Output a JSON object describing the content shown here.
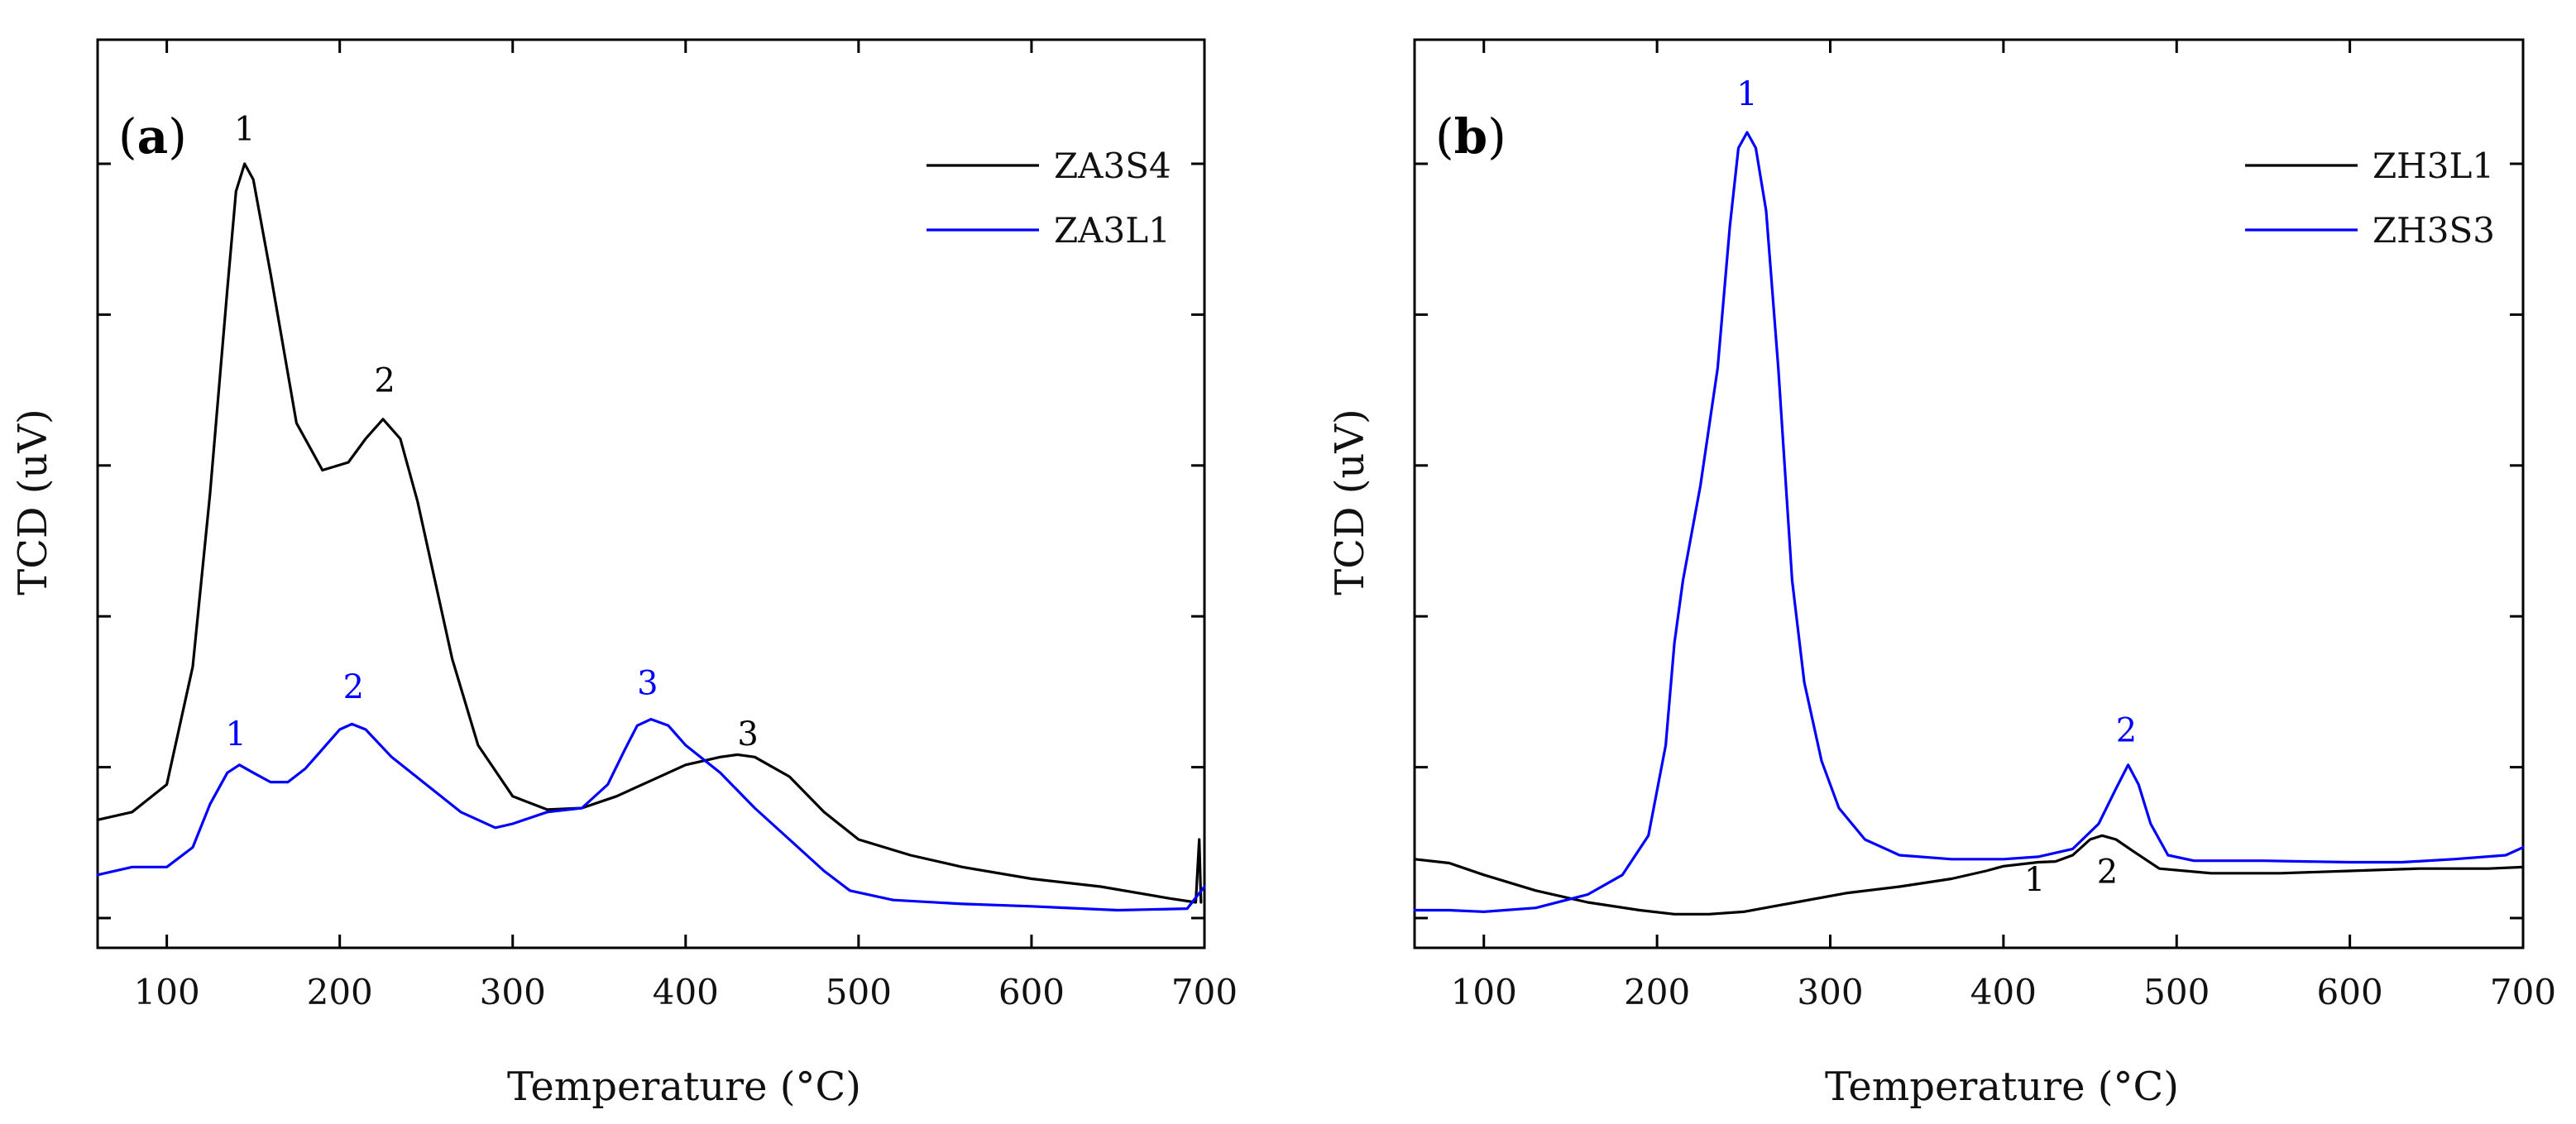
{
  "chart_data": [
    {
      "type": "line",
      "panel_label": "a",
      "xlabel": "Temperature (°C)",
      "ylabel": "TCD (uV)",
      "xlim": [
        60,
        700
      ],
      "ylim": [
        0,
        100
      ],
      "x_ticks": [
        100,
        200,
        300,
        400,
        500,
        600,
        700
      ],
      "y_ticks": [
        0,
        19.2,
        38.4,
        57.6,
        76.8,
        96
      ],
      "yticklabels_visible": false,
      "legend_position": "top-right",
      "series": [
        {
          "name": "ZA3S4",
          "color": "#000000",
          "points": [
            [
              60,
              12.5
            ],
            [
              80,
              13.5
            ],
            [
              100,
              17
            ],
            [
              115,
              32
            ],
            [
              125,
              54
            ],
            [
              135,
              80
            ],
            [
              140,
              92.5
            ],
            [
              145,
              96
            ],
            [
              150,
              94
            ],
            [
              160,
              82
            ],
            [
              175,
              63
            ],
            [
              190,
              57
            ],
            [
              205,
              58
            ],
            [
              215,
              61
            ],
            [
              225,
              63.5
            ],
            [
              235,
              61
            ],
            [
              245,
              53
            ],
            [
              255,
              43
            ],
            [
              265,
              33
            ],
            [
              280,
              22
            ],
            [
              300,
              15.5
            ],
            [
              320,
              13.8
            ],
            [
              340,
              14
            ],
            [
              360,
              15.5
            ],
            [
              380,
              17.5
            ],
            [
              400,
              19.5
            ],
            [
              420,
              20.5
            ],
            [
              430,
              20.8
            ],
            [
              440,
              20.5
            ],
            [
              460,
              18
            ],
            [
              480,
              13.5
            ],
            [
              500,
              10
            ],
            [
              530,
              8
            ],
            [
              560,
              6.5
            ],
            [
              600,
              5
            ],
            [
              640,
              4
            ],
            [
              680,
              2.5
            ],
            [
              695,
              2
            ],
            [
              697,
              10
            ],
            [
              698,
              2
            ]
          ],
          "peaks": [
            {
              "label": "1",
              "x": 145,
              "y": 99
            },
            {
              "label": "2",
              "x": 226,
              "y": 67
            },
            {
              "label": "3",
              "x": 436,
              "y": 22
            }
          ]
        },
        {
          "name": "ZA3L1",
          "color": "#0000ff",
          "points": [
            [
              60,
              5.5
            ],
            [
              80,
              6.5
            ],
            [
              100,
              6.5
            ],
            [
              115,
              9
            ],
            [
              125,
              14.5
            ],
            [
              135,
              18.5
            ],
            [
              142,
              19.5
            ],
            [
              150,
              18.5
            ],
            [
              160,
              17.3
            ],
            [
              170,
              17.3
            ],
            [
              180,
              19
            ],
            [
              190,
              21.5
            ],
            [
              200,
              24
            ],
            [
              207,
              24.7
            ],
            [
              215,
              24
            ],
            [
              230,
              20.5
            ],
            [
              250,
              17
            ],
            [
              270,
              13.5
            ],
            [
              290,
              11.5
            ],
            [
              300,
              12
            ],
            [
              320,
              13.5
            ],
            [
              340,
              14
            ],
            [
              355,
              17
            ],
            [
              365,
              21.5
            ],
            [
              372,
              24.5
            ],
            [
              380,
              25.3
            ],
            [
              390,
              24.5
            ],
            [
              400,
              22
            ],
            [
              420,
              18.5
            ],
            [
              440,
              14
            ],
            [
              460,
              10
            ],
            [
              480,
              6
            ],
            [
              495,
              3.5
            ],
            [
              520,
              2.3
            ],
            [
              560,
              1.8
            ],
            [
              600,
              1.5
            ],
            [
              650,
              1
            ],
            [
              690,
              1.2
            ],
            [
              700,
              4
            ]
          ],
          "peaks": [
            {
              "label": "1",
              "x": 140,
              "y": 22
            },
            {
              "label": "2",
              "x": 208,
              "y": 28
            },
            {
              "label": "3",
              "x": 378,
              "y": 28.5
            }
          ]
        }
      ]
    },
    {
      "type": "line",
      "panel_label": "b",
      "xlabel": "Temperature (°C)",
      "ylabel": "TCD (uV)",
      "xlim": [
        60,
        700
      ],
      "ylim": [
        0,
        100
      ],
      "x_ticks": [
        100,
        200,
        300,
        400,
        500,
        600,
        700
      ],
      "y_ticks": [
        0,
        19.2,
        38.4,
        57.6,
        76.8,
        96
      ],
      "yticklabels_visible": false,
      "legend_position": "top-right",
      "series": [
        {
          "name": "ZH3L1",
          "color": "#000000",
          "points": [
            [
              60,
              7.5
            ],
            [
              80,
              7
            ],
            [
              100,
              5.5
            ],
            [
              130,
              3.5
            ],
            [
              160,
              2
            ],
            [
              190,
              1
            ],
            [
              210,
              0.5
            ],
            [
              230,
              0.5
            ],
            [
              250,
              0.8
            ],
            [
              280,
              2
            ],
            [
              310,
              3.2
            ],
            [
              340,
              4
            ],
            [
              370,
              5
            ],
            [
              390,
              6
            ],
            [
              400,
              6.6
            ],
            [
              420,
              7.1
            ],
            [
              430,
              7.2
            ],
            [
              440,
              8
            ],
            [
              450,
              10
            ],
            [
              457,
              10.5
            ],
            [
              465,
              10
            ],
            [
              475,
              8.5
            ],
            [
              490,
              6.3
            ],
            [
              520,
              5.7
            ],
            [
              560,
              5.7
            ],
            [
              600,
              6
            ],
            [
              640,
              6.3
            ],
            [
              680,
              6.3
            ],
            [
              700,
              6.5
            ]
          ],
          "peaks": [
            {
              "label": "1",
              "x": 418,
              "y": 3.5
            },
            {
              "label": "2",
              "x": 460,
              "y": 4.5
            }
          ]
        },
        {
          "name": "ZH3S3",
          "color": "#0000ff",
          "points": [
            [
              60,
              1
            ],
            [
              80,
              1
            ],
            [
              100,
              0.8
            ],
            [
              130,
              1.3
            ],
            [
              160,
              3
            ],
            [
              180,
              5.5
            ],
            [
              195,
              10.5
            ],
            [
              205,
              22
            ],
            [
              210,
              35
            ],
            [
              215,
              43
            ],
            [
              225,
              55
            ],
            [
              235,
              70
            ],
            [
              242,
              88
            ],
            [
              247,
              98
            ],
            [
              252,
              100
            ],
            [
              257,
              98
            ],
            [
              263,
              90
            ],
            [
              270,
              70
            ],
            [
              278,
              43
            ],
            [
              285,
              30
            ],
            [
              295,
              20
            ],
            [
              305,
              14
            ],
            [
              320,
              10
            ],
            [
              340,
              8
            ],
            [
              370,
              7.5
            ],
            [
              400,
              7.5
            ],
            [
              420,
              7.8
            ],
            [
              440,
              8.8
            ],
            [
              455,
              12
            ],
            [
              465,
              16.5
            ],
            [
              472,
              19.5
            ],
            [
              478,
              17
            ],
            [
              485,
              12
            ],
            [
              495,
              8
            ],
            [
              510,
              7.3
            ],
            [
              550,
              7.3
            ],
            [
              600,
              7.1
            ],
            [
              630,
              7.1
            ],
            [
              660,
              7.5
            ],
            [
              690,
              8
            ],
            [
              700,
              9
            ]
          ],
          "peaks": [
            {
              "label": "1",
              "x": 252,
              "y": 103.5
            },
            {
              "label": "2",
              "x": 471,
              "y": 22.5
            }
          ]
        }
      ]
    }
  ]
}
